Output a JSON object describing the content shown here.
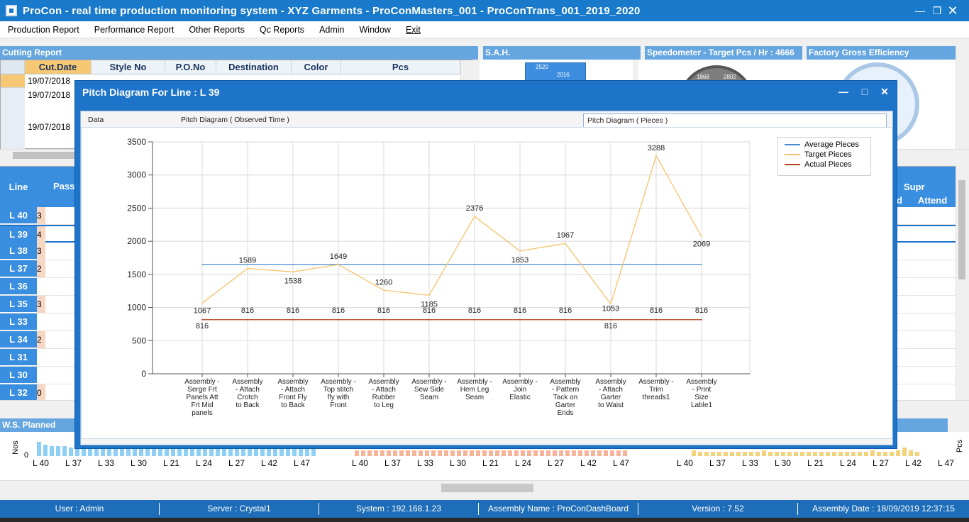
{
  "window": {
    "title": "ProCon - real time production monitoring system - XYZ Garments - ProConMasters_001 - ProConTrans_001_2019_2020"
  },
  "menu": [
    "Production Report",
    "Performance Report",
    "Other Reports",
    "Qc Reports",
    "Admin",
    "Window",
    "Exit"
  ],
  "panels": {
    "cutting": "Cutting Report",
    "sah": "S.A.H.",
    "speedometer": "Speedometer - Target Pcs / Hr : 4666",
    "factory": "Factory Gross Efficiency",
    "ws": "W.S. Planned"
  },
  "cutting_table": {
    "columns": [
      "Cut.Date",
      "Style No",
      "P.O.No",
      "Destination",
      "Color",
      "Pcs"
    ],
    "rows": [
      "19/07/2018",
      "19/07/2018",
      "19/07/2018"
    ]
  },
  "line_table": {
    "header_line": "Line",
    "header_pass": "Pass",
    "header_supr": "Supr",
    "header_d": "d",
    "header_attend": "Attend",
    "lines": [
      "L 40",
      "L 39",
      "L 38",
      "L 37",
      "L 36",
      "L 35",
      "L 33",
      "L 34",
      "L 31",
      "L 30",
      "L 32"
    ],
    "partial": [
      "3",
      "4",
      "3",
      "2",
      "",
      "3",
      "",
      "2",
      "",
      "",
      "0"
    ]
  },
  "mini_gauges": {
    "sah_ticks": [
      "2520",
      "2016"
    ],
    "speedo_ticks": [
      "1868",
      "2802"
    ]
  },
  "bottom_axis": {
    "labels": [
      "L 40",
      "L 37",
      "L 33",
      "L 30",
      "L 21",
      "L 24",
      "L 27",
      "L 42",
      "L 47"
    ],
    "ylabel_left": "Nos",
    "ylabel_right": "Pcs",
    "zero": "0"
  },
  "dialog": {
    "title": "Pitch Diagram For Line : L 39",
    "tabs": [
      "Data",
      "Pitch Diagram ( Observed Time )",
      "Pitch Diagram ( Pieces )"
    ]
  },
  "chart_data": {
    "type": "line",
    "yticks": [
      "3500",
      "3000",
      "2500",
      "2000",
      "1500",
      "1000",
      "500",
      "0"
    ],
    "ylim": [
      0,
      3500
    ],
    "grid": true,
    "legend_position": "top-right",
    "categories": [
      [
        "Assembly -",
        "Serge Frt",
        "Panels Att",
        "Frt Mid",
        "panels"
      ],
      [
        "Assembly",
        "- Attach",
        "Crotch",
        "to Back"
      ],
      [
        "Assembly",
        "- Attach",
        "Front Fly",
        "to Back"
      ],
      [
        "Assembly -",
        "Top stitch",
        "fly with",
        "Front"
      ],
      [
        "Assembly",
        "- Attach",
        "Rubber",
        "to Leg"
      ],
      [
        "Assembly -",
        "Sew Side",
        "Seam"
      ],
      [
        "Assembly -",
        "Hem Leg",
        "Seam"
      ],
      [
        "Assembly -",
        "Join",
        "Elastic"
      ],
      [
        "Assembly",
        "- Pattern",
        "Tack on",
        "Garter",
        "Ends"
      ],
      [
        "Assembly",
        "- Attach",
        "Garter",
        "to Waist"
      ],
      [
        "Assembly -",
        "Trim",
        "threads1"
      ],
      [
        "Assembly",
        "- Print",
        "Size",
        "Lable1"
      ]
    ],
    "series": [
      {
        "name": "Average Pieces",
        "color": "#4a8bd0",
        "values": [
          1651,
          1651,
          1651,
          1651,
          1651,
          1651,
          1651,
          1651,
          1651,
          1651,
          1651,
          1651
        ]
      },
      {
        "name": "Target Pieces",
        "color": "#f5c36b",
        "values": [
          1067,
          1589,
          1538,
          1649,
          1260,
          1185,
          2376,
          1853,
          1967,
          1053,
          3288,
          2069
        ]
      },
      {
        "name": "Actual Pieces",
        "color": "#b2401c",
        "values": [
          816,
          816,
          816,
          816,
          816,
          816,
          816,
          816,
          816,
          816,
          816,
          816
        ]
      }
    ],
    "target_labels": [
      "1067",
      "1589",
      "1538",
      "1649",
      "1260",
      "1185",
      "2376",
      "1853",
      "1967",
      "1053",
      "3288",
      "2069"
    ],
    "actual_labels": [
      "816",
      "816",
      "816",
      "816",
      "816",
      "816",
      "816",
      "816",
      "816",
      "816",
      "816",
      "816"
    ]
  },
  "status": {
    "user": "User : Admin",
    "server": "Server : Crystal1",
    "system": "System : 192.168.1.23",
    "assembly": "Assembly Name : ProConDashBoard",
    "version": "Version : 7.52",
    "date": "Assembly Date : 18/09/2019 12:37:15"
  }
}
